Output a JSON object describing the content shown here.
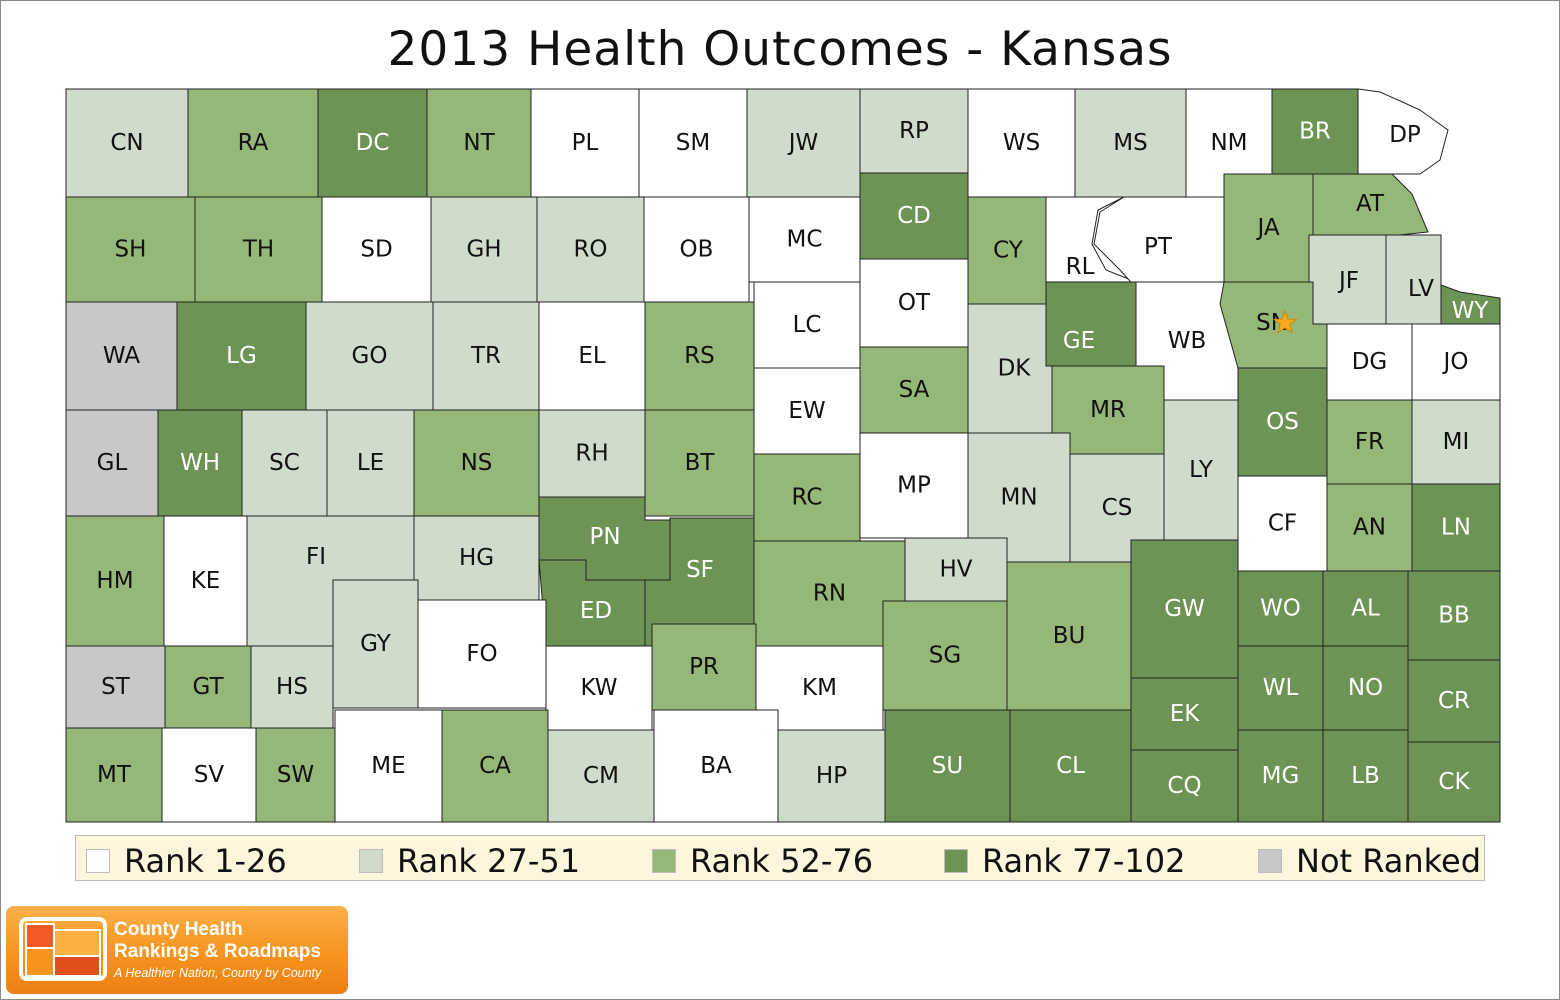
{
  "title": "2013 Health Outcomes - Kansas",
  "colors": {
    "rank_1_26": "#ffffff",
    "rank_27_51": "#d0dccb",
    "rank_52_76": "#95b879",
    "rank_77_102": "#6d9455",
    "not_ranked": "#c8c8c8",
    "border": "#222222",
    "legend_bg": "#fdf5dc",
    "logo_orange": "#f7941d"
  },
  "legend": [
    {
      "label": "Rank 1-26",
      "category": "rank_1_26"
    },
    {
      "label": "Rank 27-51",
      "category": "rank_27_51"
    },
    {
      "label": "Rank 52-76",
      "category": "rank_52_76"
    },
    {
      "label": "Rank 77-102",
      "category": "rank_77_102"
    },
    {
      "label": "Not Ranked",
      "category": "not_ranked"
    }
  ],
  "counties": [
    {
      "abbr": "CN",
      "category": "rank_27_51"
    },
    {
      "abbr": "RA",
      "category": "rank_52_76"
    },
    {
      "abbr": "DC",
      "category": "rank_77_102"
    },
    {
      "abbr": "NT",
      "category": "rank_52_76"
    },
    {
      "abbr": "PL",
      "category": "rank_1_26"
    },
    {
      "abbr": "SM",
      "category": "rank_1_26"
    },
    {
      "abbr": "JW",
      "category": "rank_27_51"
    },
    {
      "abbr": "RP",
      "category": "rank_27_51"
    },
    {
      "abbr": "WS",
      "category": "rank_1_26"
    },
    {
      "abbr": "MS",
      "category": "rank_27_51"
    },
    {
      "abbr": "NM",
      "category": "rank_1_26"
    },
    {
      "abbr": "BR",
      "category": "rank_77_102"
    },
    {
      "abbr": "DP",
      "category": "rank_1_26"
    },
    {
      "abbr": "SH",
      "category": "rank_52_76"
    },
    {
      "abbr": "TH",
      "category": "rank_52_76"
    },
    {
      "abbr": "SD",
      "category": "rank_1_26"
    },
    {
      "abbr": "GH",
      "category": "rank_27_51"
    },
    {
      "abbr": "RO",
      "category": "rank_27_51"
    },
    {
      "abbr": "OB",
      "category": "rank_1_26"
    },
    {
      "abbr": "MC",
      "category": "rank_1_26"
    },
    {
      "abbr": "CD",
      "category": "rank_77_102"
    },
    {
      "abbr": "CY",
      "category": "rank_52_76"
    },
    {
      "abbr": "RL",
      "category": "rank_1_26"
    },
    {
      "abbr": "PT",
      "category": "rank_1_26"
    },
    {
      "abbr": "JA",
      "category": "rank_52_76"
    },
    {
      "abbr": "AT",
      "category": "rank_52_76"
    },
    {
      "abbr": "JF",
      "category": "rank_27_51"
    },
    {
      "abbr": "LV",
      "category": "rank_27_51"
    },
    {
      "abbr": "WY",
      "category": "rank_77_102"
    },
    {
      "abbr": "WA",
      "category": "not_ranked"
    },
    {
      "abbr": "LG",
      "category": "rank_77_102"
    },
    {
      "abbr": "GO",
      "category": "rank_27_51"
    },
    {
      "abbr": "TR",
      "category": "rank_27_51"
    },
    {
      "abbr": "EL",
      "category": "rank_1_26"
    },
    {
      "abbr": "RS",
      "category": "rank_52_76"
    },
    {
      "abbr": "LC",
      "category": "rank_1_26"
    },
    {
      "abbr": "OT",
      "category": "rank_1_26"
    },
    {
      "abbr": "DK",
      "category": "rank_27_51"
    },
    {
      "abbr": "GE",
      "category": "rank_77_102"
    },
    {
      "abbr": "WB",
      "category": "rank_1_26"
    },
    {
      "abbr": "SN",
      "category": "rank_52_76"
    },
    {
      "abbr": "DG",
      "category": "rank_1_26"
    },
    {
      "abbr": "JO",
      "category": "rank_1_26"
    },
    {
      "abbr": "GL",
      "category": "not_ranked"
    },
    {
      "abbr": "WH",
      "category": "rank_77_102"
    },
    {
      "abbr": "SC",
      "category": "rank_27_51"
    },
    {
      "abbr": "LE",
      "category": "rank_27_51"
    },
    {
      "abbr": "NS",
      "category": "rank_52_76"
    },
    {
      "abbr": "RH",
      "category": "rank_27_51"
    },
    {
      "abbr": "BT",
      "category": "rank_52_76"
    },
    {
      "abbr": "EW",
      "category": "rank_1_26"
    },
    {
      "abbr": "SA",
      "category": "rank_52_76"
    },
    {
      "abbr": "MR",
      "category": "rank_52_76"
    },
    {
      "abbr": "OS",
      "category": "rank_77_102"
    },
    {
      "abbr": "FR",
      "category": "rank_52_76"
    },
    {
      "abbr": "MI",
      "category": "rank_27_51"
    },
    {
      "abbr": "HM",
      "category": "rank_52_76"
    },
    {
      "abbr": "KE",
      "category": "rank_1_26"
    },
    {
      "abbr": "FI",
      "category": "rank_27_51"
    },
    {
      "abbr": "HG",
      "category": "rank_27_51"
    },
    {
      "abbr": "PN",
      "category": "rank_77_102"
    },
    {
      "abbr": "SF",
      "category": "rank_77_102"
    },
    {
      "abbr": "RC",
      "category": "rank_52_76"
    },
    {
      "abbr": "MP",
      "category": "rank_1_26"
    },
    {
      "abbr": "MN",
      "category": "rank_27_51"
    },
    {
      "abbr": "CS",
      "category": "rank_27_51"
    },
    {
      "abbr": "LY",
      "category": "rank_27_51"
    },
    {
      "abbr": "CF",
      "category": "rank_1_26"
    },
    {
      "abbr": "AN",
      "category": "rank_52_76"
    },
    {
      "abbr": "LN",
      "category": "rank_77_102"
    },
    {
      "abbr": "ED",
      "category": "rank_77_102"
    },
    {
      "abbr": "GY",
      "category": "rank_27_51"
    },
    {
      "abbr": "FO",
      "category": "rank_1_26"
    },
    {
      "abbr": "RN",
      "category": "rank_52_76"
    },
    {
      "abbr": "HV",
      "category": "rank_27_51"
    },
    {
      "abbr": "SG",
      "category": "rank_52_76"
    },
    {
      "abbr": "BU",
      "category": "rank_52_76"
    },
    {
      "abbr": "GW",
      "category": "rank_77_102"
    },
    {
      "abbr": "WO",
      "category": "rank_77_102"
    },
    {
      "abbr": "AL",
      "category": "rank_77_102"
    },
    {
      "abbr": "BB",
      "category": "rank_77_102"
    },
    {
      "abbr": "ST",
      "category": "not_ranked"
    },
    {
      "abbr": "GT",
      "category": "rank_52_76"
    },
    {
      "abbr": "HS",
      "category": "rank_27_51"
    },
    {
      "abbr": "KW",
      "category": "rank_1_26"
    },
    {
      "abbr": "PR",
      "category": "rank_52_76"
    },
    {
      "abbr": "KM",
      "category": "rank_1_26"
    },
    {
      "abbr": "EK",
      "category": "rank_77_102"
    },
    {
      "abbr": "WL",
      "category": "rank_77_102"
    },
    {
      "abbr": "NO",
      "category": "rank_77_102"
    },
    {
      "abbr": "CR",
      "category": "rank_77_102"
    },
    {
      "abbr": "MT",
      "category": "rank_52_76"
    },
    {
      "abbr": "SV",
      "category": "rank_1_26"
    },
    {
      "abbr": "SW",
      "category": "rank_52_76"
    },
    {
      "abbr": "ME",
      "category": "rank_1_26"
    },
    {
      "abbr": "CA",
      "category": "rank_52_76"
    },
    {
      "abbr": "CM",
      "category": "rank_27_51"
    },
    {
      "abbr": "BA",
      "category": "rank_1_26"
    },
    {
      "abbr": "HP",
      "category": "rank_27_51"
    },
    {
      "abbr": "SU",
      "category": "rank_77_102"
    },
    {
      "abbr": "CL",
      "category": "rank_77_102"
    },
    {
      "abbr": "CQ",
      "category": "rank_77_102"
    },
    {
      "abbr": "MG",
      "category": "rank_77_102"
    },
    {
      "abbr": "LB",
      "category": "rank_77_102"
    },
    {
      "abbr": "CK",
      "category": "rank_77_102"
    }
  ],
  "capital_marker": {
    "county": "SN",
    "icon": "star-icon",
    "color": "#f7a81b"
  },
  "logo": {
    "icon": "county-health-logo-icon",
    "line1": "County Health",
    "line2": "Rankings & Roadmaps",
    "tagline": "A Healthier Nation, County by County"
  }
}
